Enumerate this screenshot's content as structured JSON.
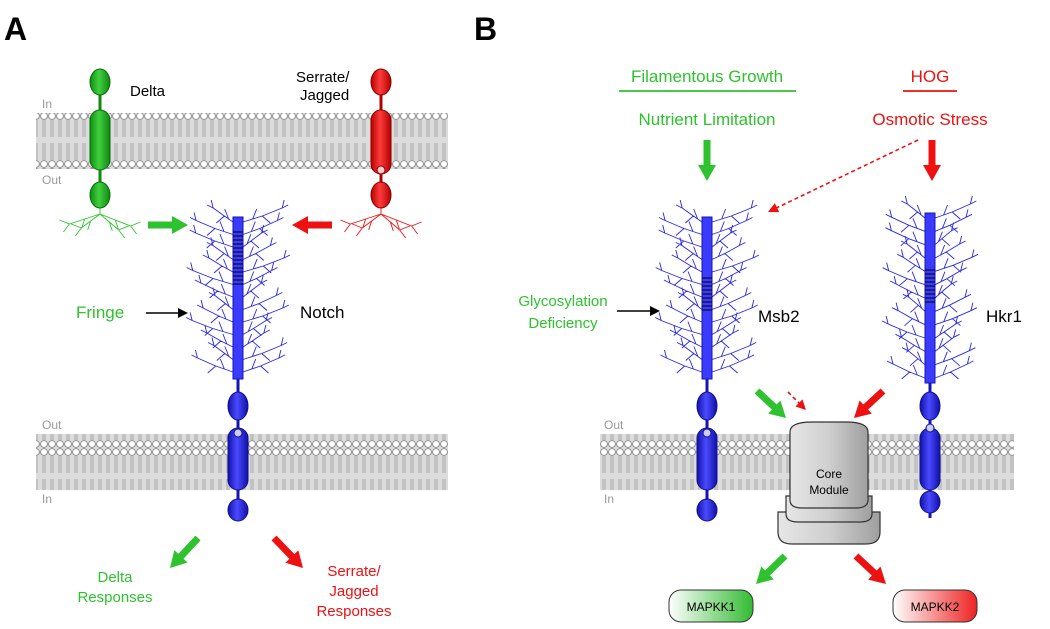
{
  "colors": {
    "green": "#2ec22e",
    "red": "#ee1111",
    "blue": "#2626e8",
    "black": "#000000",
    "membrane": "#d8d8d8",
    "core": "#c8c8c8"
  },
  "panel_a": {
    "letter": "A",
    "membrane_top": {
      "in": "In",
      "out": "Out"
    },
    "membrane_bottom": {
      "out": "Out",
      "in": "In"
    },
    "delta": "Delta",
    "serrate": [
      "Serrate/",
      "Jagged"
    ],
    "fringe": "Fringe",
    "notch": "Notch",
    "delta_responses": [
      "Delta",
      "Responses"
    ],
    "serrate_responses": [
      "Serrate/",
      "Jagged",
      "Responses"
    ]
  },
  "panel_b": {
    "letter": "B",
    "filamentous": "Filamentous Growth",
    "hog": "HOG",
    "nutrient": "Nutrient Limitation",
    "osmotic": "Osmotic Stress",
    "glyco": [
      "Glycosylation",
      "Deficiency"
    ],
    "msb2": "Msb2",
    "hkr1": "Hkr1",
    "membrane": {
      "out": "Out",
      "in": "In"
    },
    "core": [
      "Core",
      "Module"
    ],
    "mapkk1": "MAPKK1",
    "mapkk2": "MAPKK2"
  }
}
